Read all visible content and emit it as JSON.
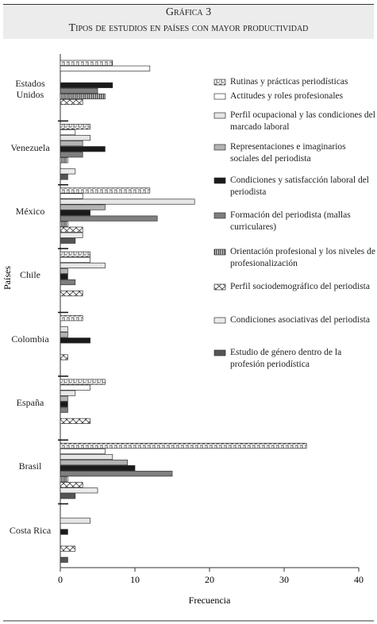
{
  "chart_data": {
    "type": "bar",
    "title": "Gráfica 3",
    "subtitle": "Tipos de estudios en países con mayor productividad",
    "x_label": "Frecuencia",
    "y_label": "Países",
    "categories": [
      "Estados Unidos",
      "Venezuela",
      "México",
      "Chile",
      "Colombia",
      "España",
      "Brasil",
      "Costa Rica"
    ],
    "xlim": [
      0,
      40
    ],
    "xticks": [
      0,
      10,
      20,
      30,
      40
    ],
    "series": [
      {
        "name": "Rutinas y prácticas periodísticas",
        "color": "#ffffff",
        "pattern": "crenel",
        "values": [
          7,
          4,
          12,
          4,
          3,
          6,
          33,
          0
        ]
      },
      {
        "name": "Actitudes y roles profesionales",
        "color": "#ffffff",
        "values": [
          12,
          2,
          3,
          4,
          0,
          4,
          6,
          0
        ]
      },
      {
        "name": "Perfil ocupacional y las condiciones del marcado laboral",
        "color": "#e6e6e6",
        "values": [
          0,
          4,
          18,
          6,
          1,
          2,
          7,
          4
        ]
      },
      {
        "name": "Representaciones e imaginarios sociales del periodista",
        "color": "#b3b3b3",
        "values": [
          0,
          3,
          6,
          1,
          1,
          1,
          9,
          0
        ]
      },
      {
        "name": "Condiciones y satisfacción laboral del periodista",
        "color": "#1a1a1a",
        "values": [
          7,
          6,
          4,
          1,
          4,
          1,
          10,
          1
        ]
      },
      {
        "name": "Formación del periodista (mallas curriculares)",
        "color": "#7f7f7f",
        "values": [
          5,
          3,
          13,
          2,
          0,
          1,
          15,
          0
        ]
      },
      {
        "name": "Orientación profesional y los niveles de profesionalización",
        "color": "#ffffff",
        "pattern": "stripes",
        "values": [
          6,
          1,
          1,
          0,
          0,
          0,
          1,
          0
        ]
      },
      {
        "name": "Perfil sociodemográfico del periodista",
        "color": "#ffffff",
        "pattern": "cross",
        "values": [
          3,
          0,
          3,
          3,
          1,
          4,
          3,
          2
        ]
      },
      {
        "name": "Condiciones asociativas del periodista",
        "color": "#ebebeb",
        "values": [
          0,
          2,
          3,
          0,
          0,
          0,
          5,
          0
        ]
      },
      {
        "name": "Estudio de género dentro de la profesión periodística",
        "color": "#555555",
        "values": [
          0,
          1,
          2,
          0,
          0,
          0,
          2,
          1
        ]
      }
    ]
  }
}
